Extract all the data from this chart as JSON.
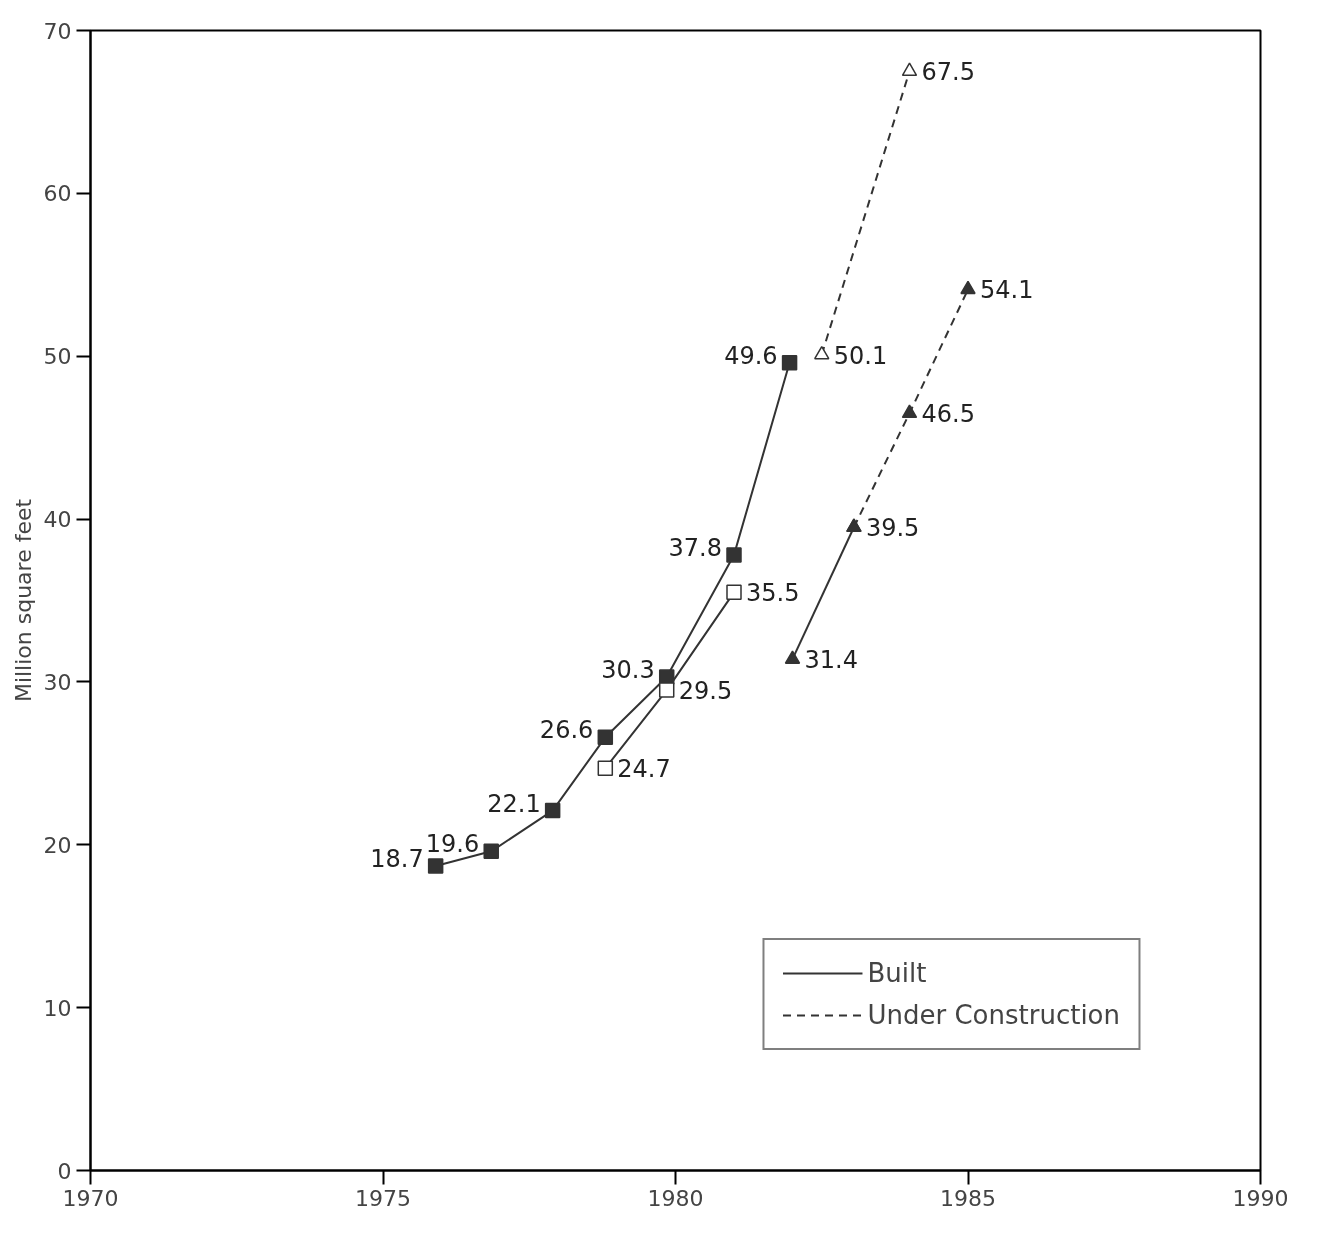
{
  "chart_data": {
    "type": "line",
    "ylabel": "Million square feet",
    "xlim": [
      1970,
      1990
    ],
    "xticks": [
      1970,
      1975,
      1980,
      1985,
      1990
    ],
    "ylim": [
      0,
      70
    ],
    "yticks": [
      0,
      10,
      20,
      30,
      40,
      50,
      60,
      70
    ],
    "grid": false,
    "legend": "bottom right",
    "series": [
      {
        "name": "Built",
        "color": "#333333",
        "marker": "square",
        "line_style": "solid",
        "x": [
          1975.9,
          1976.85,
          1977.9,
          1978.8,
          1979.85,
          1981.0,
          1981.95
        ],
        "values": [
          18.7,
          19.6,
          22.1,
          26.6,
          30.3,
          37.8,
          49.6
        ],
        "value_labels": [
          "18.7",
          "19.6",
          "22.1",
          "26.6",
          "30.3",
          "37.8",
          "49.6"
        ]
      },
      {
        "color": "#333333",
        "marker": "square_open",
        "line_style": "solid",
        "x": [
          1978.8,
          1979.85,
          1981.0
        ],
        "values": [
          24.7,
          29.5,
          35.5
        ],
        "value_labels": [
          "24.7",
          "29.5",
          "35.5"
        ]
      },
      {
        "color": "#333333",
        "marker": "triangle",
        "line_style": "solid",
        "x": [
          1982.0,
          1983.05
        ],
        "values": [
          31.4,
          39.5
        ],
        "value_labels": [
          "31.4",
          "39.5"
        ]
      },
      {
        "color": "#333333",
        "marker": "triangle",
        "line_style": "dashed",
        "x": [
          1983.05,
          1984.0,
          1985.0
        ],
        "values": [
          39.5,
          46.5,
          54.1
        ],
        "value_labels": [
          null,
          "46.5",
          "54.1"
        ]
      },
      {
        "name": "Under Construction",
        "color": "#333333",
        "marker": "triangle_open",
        "line_style": "dashed",
        "x": [
          1982.5,
          1984.0
        ],
        "values": [
          50.1,
          67.5
        ],
        "value_labels": [
          "50.1",
          "67.5"
        ]
      }
    ]
  }
}
